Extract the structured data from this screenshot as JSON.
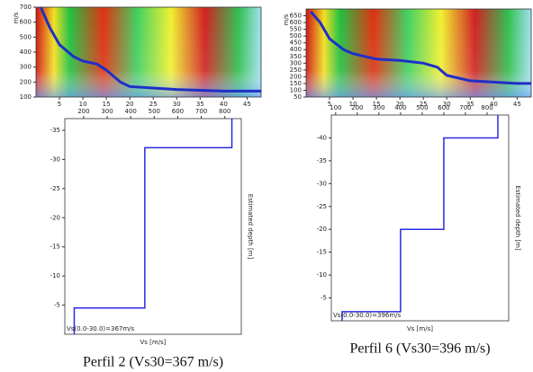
{
  "chart_data": [
    {
      "type": "line",
      "x_axis": "bottom",
      "ylabel": "m/s",
      "xlim": [
        0,
        48
      ],
      "xticks": [
        5,
        10,
        15,
        20,
        25,
        30,
        35,
        40,
        45
      ],
      "ylim": [
        100,
        700
      ],
      "yticks": [
        100,
        200,
        300,
        400,
        500,
        600,
        700
      ],
      "color": "#1f2fc8",
      "x": [
        1,
        3,
        5,
        8,
        10,
        13,
        15,
        18,
        20,
        25,
        30,
        35,
        40,
        45,
        48
      ],
      "y": [
        700,
        560,
        450,
        370,
        340,
        320,
        280,
        200,
        170,
        160,
        150,
        145,
        140,
        140,
        140
      ]
    },
    {
      "type": "line",
      "x_axis": "top",
      "xlabel": "Vs [m/s]",
      "ylabel": "Estimated depth [m]",
      "annotation": "Vs(0.0-30.0)=367m/s",
      "caption": "Perfil 2 (Vs30=367 m/s)",
      "xlim": [
        120,
        870
      ],
      "xticks": [
        200,
        300,
        400,
        500,
        600,
        700,
        800
      ],
      "ylim": [
        0,
        -37
      ],
      "yticks": [
        -5,
        -10,
        -15,
        -20,
        -25,
        -30,
        -35
      ],
      "color": "#2a2ae0",
      "x": [
        160,
        160,
        460,
        460,
        830,
        830
      ],
      "y": [
        0,
        -4.5,
        -4.5,
        -32,
        -32,
        -37
      ]
    },
    {
      "type": "line",
      "x_axis": "bottom",
      "ylabel": "m/s",
      "xlim": [
        0,
        48
      ],
      "xticks": [
        5,
        10,
        15,
        20,
        25,
        30,
        35,
        40,
        45
      ],
      "ylim": [
        50,
        700
      ],
      "yticks": [
        50,
        100,
        150,
        200,
        250,
        300,
        350,
        400,
        450,
        500,
        550,
        600,
        650
      ],
      "color": "#1f2fc8",
      "x": [
        1,
        3,
        5,
        8,
        10,
        15,
        20,
        25,
        28,
        30,
        35,
        40,
        45,
        48
      ],
      "y": [
        680,
        600,
        480,
        400,
        370,
        330,
        320,
        300,
        270,
        210,
        170,
        160,
        150,
        150
      ]
    },
    {
      "type": "line",
      "x_axis": "top",
      "xlabel": "Vs [m/s]",
      "ylabel": "Estimated depth [m]",
      "annotation": "Vs(0.0-30.0)=396m/s",
      "caption": "Perfil 6 (Vs30=396 m/s)",
      "xlim": [
        80,
        900
      ],
      "xticks": [
        100,
        200,
        300,
        400,
        500,
        600,
        700,
        800
      ],
      "ylim": [
        0,
        -45
      ],
      "yticks": [
        -5,
        -10,
        -15,
        -20,
        -25,
        -30,
        -35,
        -40
      ],
      "color": "#2a2ae0",
      "x": [
        130,
        130,
        400,
        400,
        600,
        600,
        850,
        850
      ],
      "y": [
        0,
        -2,
        -2,
        -20,
        -20,
        -40,
        -40,
        -45
      ]
    }
  ]
}
